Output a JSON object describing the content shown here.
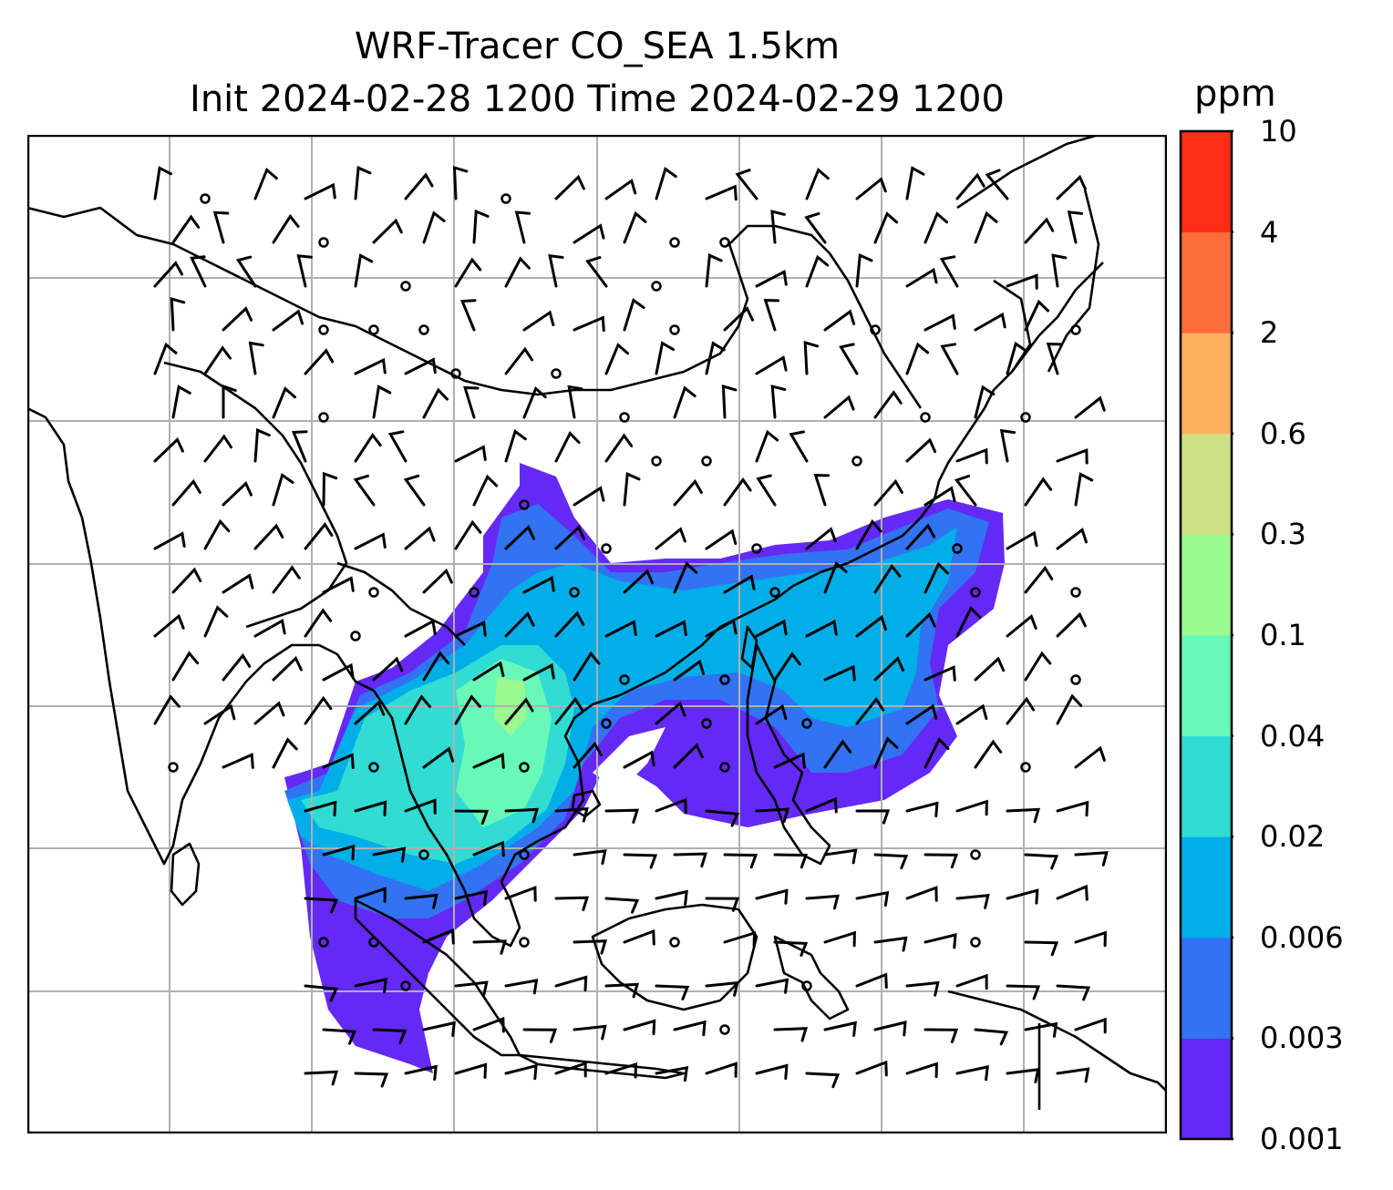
{
  "title": {
    "line1": "WRF-Tracer CO_SEA 1.5km",
    "line2": "Init 2024-02-28 1200 Time 2024-02-29 1200"
  },
  "colorbar": {
    "unit": "ppm",
    "levels": [
      "0.001",
      "0.003",
      "0.006",
      "0.02",
      "0.04",
      "0.1",
      "0.3",
      "0.6",
      "2",
      "4",
      "10"
    ],
    "colors": [
      "#6429f5",
      "#3173f2",
      "#02aee8",
      "#30dcd3",
      "#68f8b7",
      "#9afa8f",
      "#cce186",
      "#feb061",
      "#ff6d3b",
      "#ff2c16"
    ]
  },
  "map": {
    "gridlines": true,
    "frame_color": "#000000",
    "grid_color": "#b0b0b0",
    "coastline_color": "#000000",
    "barb_color": "#000000"
  }
}
